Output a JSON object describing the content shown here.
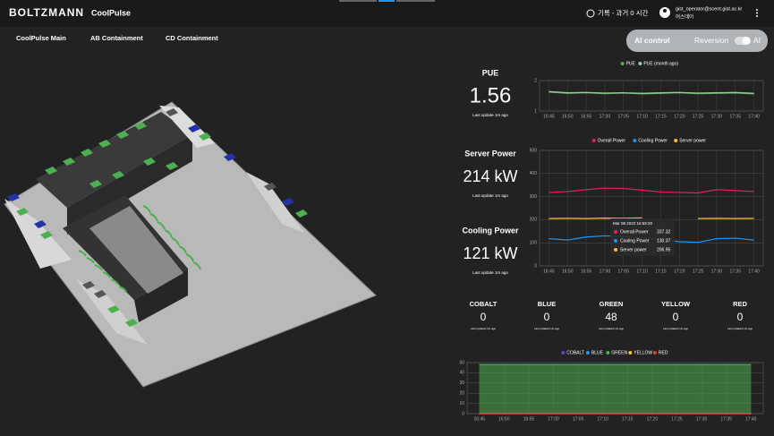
{
  "header": {
    "logo": "BOLTZMANN",
    "app": "CoolPulse",
    "time_range": "기록 - 과거 0 시간",
    "user_email": "gist_operator@scent.gist.ac.kr",
    "user_role": "어스데어"
  },
  "nav": {
    "tabs": [
      "CoolPulse Main",
      "AB Containment",
      "CD Containment"
    ],
    "active": 0
  },
  "mode_toggle": {
    "left": "AI control",
    "right": "Reversion",
    "switch_label": "AI"
  },
  "metrics": [
    {
      "label": "PUE",
      "value": "1.56",
      "updated": "Last update 1m ago"
    },
    {
      "label": "Server Power",
      "value": "214 kW",
      "updated": "Last update 1m ago"
    },
    {
      "label": "Cooling Power",
      "value": "121 kW",
      "updated": "Last update 1m ago"
    }
  ],
  "alerts": [
    {
      "name": "COBALT",
      "value": 0,
      "color": "#6a3fd1",
      "updated": "Last updated 1m ago"
    },
    {
      "name": "BLUE",
      "value": 0,
      "color": "#2196f3",
      "updated": "Last updated 1m ago"
    },
    {
      "name": "GREEN",
      "value": 48,
      "color": "#4caf50",
      "updated": "Last updated 1m ago"
    },
    {
      "name": "YELLOW",
      "value": 0,
      "color": "#fbc02d",
      "updated": "Last updated 1m ago"
    },
    {
      "name": "RED",
      "value": 0,
      "color": "#e53935",
      "updated": "Last updated 1m ago"
    }
  ],
  "charts": [
    {
      "type": "line",
      "categories": [
        "16:45",
        "16:50",
        "16:55",
        "17:00",
        "17:05",
        "17:10",
        "17:15",
        "17:20",
        "17:25",
        "17:30",
        "17:35",
        "17:40"
      ],
      "series": [
        {
          "name": "PUE",
          "color": "#4caf50",
          "values": [
            1.62,
            1.58,
            1.6,
            1.57,
            1.59,
            1.56,
            1.58,
            1.6,
            1.57,
            1.58,
            1.59,
            1.56
          ]
        },
        {
          "name": "PUE (month ago)",
          "color": "#9ccc9c",
          "values": [
            1.64,
            1.6,
            1.61,
            1.59,
            1.6,
            1.58,
            1.6,
            1.61,
            1.59,
            1.6,
            1.61,
            1.58
          ]
        }
      ],
      "ylim": [
        1,
        2
      ],
      "yticks": [
        1,
        2
      ],
      "grid": true
    },
    {
      "type": "line",
      "categories": [
        "16:45",
        "16:50",
        "16:55",
        "17:00",
        "17:05",
        "17:10",
        "17:15",
        "17:20",
        "17:25",
        "17:30",
        "17:35",
        "17:40"
      ],
      "series": [
        {
          "name": "Overall Power",
          "color": "#e91e63",
          "values": [
            318,
            322,
            330,
            337,
            335,
            328,
            320,
            318,
            316,
            330,
            326,
            322
          ]
        },
        {
          "name": "Cooling Power",
          "color": "#2196f3",
          "values": [
            118,
            112,
            125,
            130,
            128,
            120,
            115,
            105,
            102,
            118,
            120,
            112
          ]
        },
        {
          "name": "Server power",
          "color": "#fbc02d",
          "values": [
            205,
            206,
            205,
            207,
            206,
            208,
            null,
            null,
            205,
            206,
            205,
            206
          ]
        }
      ],
      "ylim": [
        0,
        500
      ],
      "yticks": [
        0,
        100,
        200,
        300,
        400,
        500
      ],
      "grid": true,
      "tooltip": {
        "title": "Mar 08 2023 16:59:20",
        "rows": [
          {
            "name": "Overall Power",
            "value": 337.32
          },
          {
            "name": "Cooling Power",
            "value": 130.37
          },
          {
            "name": "Server power",
            "value": 206.95
          }
        ]
      }
    },
    {
      "type": "area",
      "categories": [
        "16:45",
        "16:50",
        "16:55",
        "17:00",
        "17:05",
        "17:10",
        "17:15",
        "17:20",
        "17:25",
        "17:30",
        "17:35",
        "17:40"
      ],
      "series": [
        {
          "name": "COBALT",
          "color": "#6a3fd1",
          "values": [
            0,
            0,
            0,
            0,
            0,
            0,
            0,
            0,
            0,
            0,
            0,
            0
          ]
        },
        {
          "name": "BLUE",
          "color": "#2196f3",
          "values": [
            0,
            0,
            0,
            0,
            0,
            0,
            0,
            0,
            0,
            0,
            0,
            0
          ]
        },
        {
          "name": "GREEN",
          "color": "#4caf50",
          "values": [
            48,
            48,
            48,
            48,
            48,
            48,
            48,
            48,
            48,
            48,
            48,
            48
          ]
        },
        {
          "name": "YELLOW",
          "color": "#fbc02d",
          "values": [
            0,
            0,
            0,
            0,
            0,
            0,
            0,
            0,
            0,
            0,
            0,
            0
          ]
        },
        {
          "name": "RED",
          "color": "#e53935",
          "values": [
            0,
            0,
            0,
            0,
            0,
            0,
            0,
            0,
            0,
            0,
            0,
            0
          ]
        }
      ],
      "ylim": [
        0,
        50
      ],
      "yticks": [
        0,
        10,
        20,
        30,
        40,
        50
      ],
      "grid": true
    }
  ]
}
